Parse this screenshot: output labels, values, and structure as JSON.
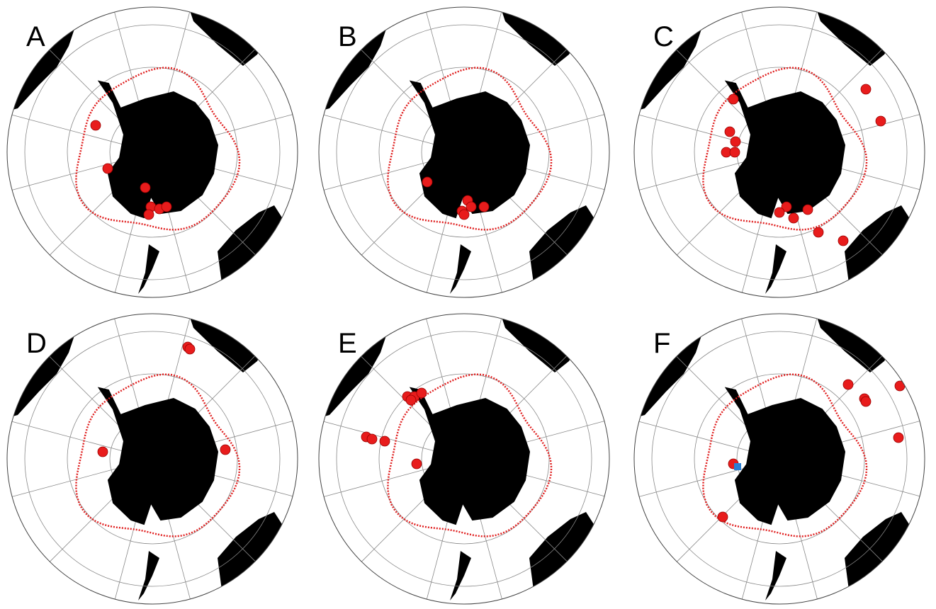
{
  "panels": [
    {
      "label": "A"
    },
    {
      "label": "B"
    },
    {
      "label": "C"
    },
    {
      "label": "D"
    },
    {
      "label": "E"
    },
    {
      "label": "F"
    }
  ]
}
